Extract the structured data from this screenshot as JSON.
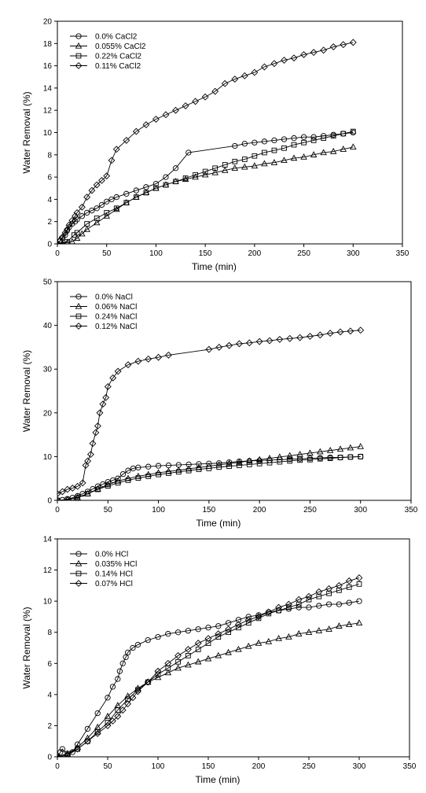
{
  "chart_data": [
    {
      "type": "line",
      "xlabel": "Time (min)",
      "ylabel": "Water Removal (%)",
      "xlim": [
        0,
        350
      ],
      "ylim": [
        0,
        20
      ],
      "xticks": [
        0,
        50,
        100,
        150,
        200,
        250,
        300,
        350
      ],
      "yticks": [
        0,
        2,
        4,
        6,
        8,
        10,
        12,
        14,
        16,
        18,
        20
      ],
      "grid": false,
      "legend": "top-left",
      "series": [
        {
          "name": "0.0% CaCl2",
          "marker": "circle",
          "x": [
            0,
            3,
            5,
            8,
            10,
            12,
            15,
            18,
            20,
            25,
            30,
            35,
            40,
            45,
            50,
            55,
            60,
            70,
            80,
            90,
            100,
            110,
            120,
            133,
            180,
            190,
            200,
            210,
            220,
            230,
            240,
            250,
            260,
            270,
            280,
            290,
            300
          ],
          "y": [
            0,
            0.3,
            0.5,
            0.8,
            1.2,
            1.5,
            1.8,
            2.0,
            2.2,
            2.5,
            2.8,
            3.0,
            3.2,
            3.5,
            3.8,
            4.0,
            4.2,
            4.5,
            4.8,
            5.1,
            5.4,
            6.0,
            6.8,
            8.2,
            8.8,
            9.0,
            9.1,
            9.2,
            9.3,
            9.4,
            9.5,
            9.6,
            9.6,
            9.7,
            9.8,
            9.9,
            10.0
          ]
        },
        {
          "name": "0.055% CaCl2",
          "marker": "triangle",
          "x": [
            0,
            5,
            10,
            15,
            20,
            25,
            30,
            40,
            50,
            60,
            70,
            80,
            90,
            100,
            110,
            120,
            130,
            140,
            150,
            160,
            170,
            180,
            190,
            200,
            210,
            220,
            230,
            240,
            250,
            260,
            270,
            280,
            290,
            300
          ],
          "y": [
            0,
            0.05,
            0.1,
            0.2,
            0.5,
            0.9,
            1.3,
            1.9,
            2.5,
            3.1,
            3.7,
            4.2,
            4.6,
            5.0,
            5.3,
            5.6,
            5.8,
            6.0,
            6.2,
            6.4,
            6.6,
            6.8,
            6.9,
            7.0,
            7.2,
            7.3,
            7.5,
            7.7,
            7.8,
            8.0,
            8.2,
            8.3,
            8.5,
            8.7
          ]
        },
        {
          "name": "0.22% CaCl2",
          "marker": "square",
          "x": [
            0,
            10,
            17,
            20,
            30,
            40,
            50,
            60,
            70,
            80,
            90,
            100,
            110,
            120,
            130,
            140,
            150,
            160,
            170,
            180,
            190,
            200,
            210,
            220,
            230,
            240,
            250,
            260,
            270,
            280,
            290,
            300
          ],
          "y": [
            0,
            0.2,
            0.8,
            1.0,
            1.8,
            2.3,
            2.8,
            3.2,
            3.7,
            4.2,
            4.6,
            5.0,
            5.3,
            5.6,
            5.9,
            6.2,
            6.5,
            6.8,
            7.1,
            7.4,
            7.6,
            7.9,
            8.2,
            8.4,
            8.6,
            8.9,
            9.1,
            9.3,
            9.5,
            9.7,
            9.9,
            10.1
          ]
        },
        {
          "name": "0.11% CaCl2",
          "marker": "diamond",
          "x": [
            0,
            3,
            5,
            8,
            10,
            12,
            15,
            18,
            20,
            25,
            30,
            35,
            40,
            45,
            50,
            55,
            60,
            70,
            80,
            90,
            100,
            110,
            120,
            130,
            140,
            150,
            160,
            170,
            180,
            190,
            200,
            210,
            220,
            230,
            240,
            250,
            260,
            270,
            280,
            290,
            300
          ],
          "y": [
            0,
            0.3,
            0.6,
            1.0,
            1.3,
            1.7,
            2.1,
            2.5,
            2.8,
            3.3,
            4.2,
            4.8,
            5.3,
            5.7,
            6.1,
            7.5,
            8.5,
            9.3,
            10.1,
            10.7,
            11.2,
            11.6,
            12.0,
            12.4,
            12.8,
            13.2,
            13.7,
            14.4,
            14.8,
            15.1,
            15.4,
            15.9,
            16.2,
            16.5,
            16.7,
            17.0,
            17.2,
            17.4,
            17.7,
            17.9,
            18.1
          ]
        }
      ]
    },
    {
      "type": "line",
      "xlabel": "Time (min)",
      "ylabel": "Water Removal (%)",
      "xlim": [
        0,
        350
      ],
      "ylim": [
        0,
        50
      ],
      "xticks": [
        0,
        50,
        100,
        150,
        200,
        250,
        300,
        350
      ],
      "yticks": [
        0,
        10,
        20,
        30,
        40,
        50
      ],
      "grid": false,
      "legend": "top-left",
      "series": [
        {
          "name": "0.0% NaCl",
          "marker": "circle",
          "x": [
            0,
            5,
            10,
            15,
            20,
            25,
            30,
            35,
            40,
            45,
            50,
            55,
            60,
            65,
            70,
            75,
            80,
            90,
            100,
            110,
            120,
            130,
            140,
            150,
            160,
            170,
            180,
            190,
            200,
            210,
            220,
            230,
            240,
            250,
            260,
            270,
            280,
            290,
            300
          ],
          "y": [
            0,
            0.1,
            0.3,
            0.6,
            1.0,
            1.5,
            2.0,
            2.6,
            3.2,
            3.7,
            4.2,
            4.6,
            5.0,
            6.0,
            6.8,
            7.3,
            7.5,
            7.7,
            7.9,
            8.0,
            8.1,
            8.2,
            8.3,
            8.4,
            8.5,
            8.7,
            8.9,
            9.0,
            9.1,
            9.2,
            9.3,
            9.4,
            9.5,
            9.6,
            9.7,
            9.8,
            9.8,
            9.9,
            10.0
          ]
        },
        {
          "name": "0.06% NaCl",
          "marker": "triangle",
          "x": [
            0,
            10,
            20,
            30,
            40,
            50,
            60,
            70,
            80,
            90,
            100,
            110,
            120,
            130,
            140,
            150,
            160,
            170,
            180,
            190,
            200,
            210,
            220,
            230,
            240,
            250,
            260,
            270,
            280,
            290,
            300
          ],
          "y": [
            0,
            0.2,
            0.6,
            1.5,
            2.6,
            3.6,
            4.4,
            5.0,
            5.5,
            5.9,
            6.3,
            6.6,
            6.9,
            7.2,
            7.5,
            7.8,
            8.1,
            8.4,
            8.7,
            9.0,
            9.3,
            9.6,
            9.9,
            10.2,
            10.5,
            10.8,
            11.1,
            11.4,
            11.7,
            12.0,
            12.3
          ]
        },
        {
          "name": "0.24% NaCl",
          "marker": "square",
          "x": [
            0,
            10,
            20,
            30,
            40,
            50,
            60,
            70,
            80,
            90,
            100,
            110,
            120,
            130,
            140,
            150,
            160,
            170,
            180,
            190,
            200,
            210,
            220,
            230,
            240,
            250,
            260,
            270,
            280,
            290,
            300
          ],
          "y": [
            0,
            0.2,
            0.7,
            1.5,
            2.5,
            3.3,
            4.0,
            4.6,
            5.1,
            5.5,
            5.9,
            6.2,
            6.5,
            6.8,
            7.1,
            7.3,
            7.6,
            7.8,
            8.0,
            8.2,
            8.4,
            8.6,
            8.8,
            9.0,
            9.2,
            9.3,
            9.5,
            9.6,
            9.8,
            9.9,
            10.0
          ]
        },
        {
          "name": "0.12% NaCl",
          "marker": "diamond",
          "x": [
            0,
            5,
            10,
            15,
            20,
            25,
            28,
            30,
            33,
            35,
            38,
            40,
            42,
            45,
            48,
            50,
            55,
            60,
            70,
            80,
            90,
            100,
            110,
            150,
            160,
            170,
            180,
            190,
            200,
            210,
            220,
            230,
            240,
            250,
            260,
            270,
            280,
            290,
            300
          ],
          "y": [
            1.5,
            2.0,
            2.5,
            2.8,
            3.2,
            4.0,
            8.0,
            9.0,
            10.5,
            13.0,
            15.5,
            17.0,
            20.0,
            22.0,
            23.5,
            26.0,
            28.0,
            29.5,
            31.0,
            31.8,
            32.3,
            32.7,
            33.2,
            34.5,
            35.0,
            35.4,
            35.8,
            36.0,
            36.3,
            36.5,
            36.8,
            37.0,
            37.2,
            37.5,
            37.8,
            38.2,
            38.5,
            38.7,
            38.9
          ]
        }
      ]
    },
    {
      "type": "line",
      "xlabel": "Time (min)",
      "ylabel": "Water Removal (%)",
      "xlim": [
        0,
        350
      ],
      "ylim": [
        0,
        14
      ],
      "xticks": [
        0,
        50,
        100,
        150,
        200,
        250,
        300,
        350
      ],
      "yticks": [
        0,
        2,
        4,
        6,
        8,
        10,
        12,
        14
      ],
      "grid": false,
      "legend": "top-left",
      "series": [
        {
          "name": "0.0% HCl",
          "marker": "circle",
          "x": [
            0,
            3,
            5,
            10,
            15,
            20,
            30,
            40,
            50,
            55,
            60,
            62,
            65,
            68,
            70,
            75,
            80,
            90,
            100,
            110,
            120,
            130,
            140,
            150,
            160,
            170,
            180,
            190,
            200,
            210,
            220,
            230,
            240,
            250,
            260,
            270,
            280,
            290,
            300
          ],
          "y": [
            0,
            0.3,
            0.5,
            0.1,
            0.3,
            0.8,
            1.8,
            2.8,
            3.8,
            4.5,
            5.0,
            5.5,
            6.0,
            6.4,
            6.7,
            7.0,
            7.2,
            7.5,
            7.7,
            7.9,
            8.0,
            8.1,
            8.2,
            8.3,
            8.4,
            8.6,
            8.8,
            9.0,
            9.1,
            9.3,
            9.4,
            9.5,
            9.6,
            9.6,
            9.7,
            9.8,
            9.8,
            9.9,
            10.0
          ]
        },
        {
          "name": "0.035% HCl",
          "marker": "triangle",
          "x": [
            0,
            10,
            20,
            30,
            40,
            50,
            60,
            70,
            80,
            90,
            100,
            110,
            120,
            130,
            140,
            150,
            160,
            170,
            180,
            190,
            200,
            210,
            220,
            230,
            240,
            250,
            260,
            270,
            280,
            290,
            300
          ],
          "y": [
            0,
            0.2,
            0.6,
            1.2,
            1.9,
            2.6,
            3.3,
            3.9,
            4.4,
            4.8,
            5.1,
            5.4,
            5.7,
            5.9,
            6.1,
            6.3,
            6.5,
            6.7,
            6.9,
            7.1,
            7.3,
            7.4,
            7.6,
            7.7,
            7.9,
            8.0,
            8.1,
            8.2,
            8.4,
            8.5,
            8.6
          ]
        },
        {
          "name": "0.14% HCl",
          "marker": "square",
          "x": [
            0,
            10,
            20,
            30,
            40,
            50,
            60,
            70,
            80,
            90,
            100,
            110,
            120,
            130,
            140,
            150,
            160,
            170,
            180,
            190,
            200,
            210,
            220,
            230,
            240,
            250,
            260,
            270,
            280,
            290,
            300
          ],
          "y": [
            0,
            0.2,
            0.5,
            1.0,
            1.6,
            2.2,
            3.0,
            3.7,
            4.3,
            4.8,
            5.3,
            5.7,
            6.1,
            6.5,
            6.9,
            7.3,
            7.7,
            8.0,
            8.3,
            8.6,
            8.9,
            9.2,
            9.4,
            9.6,
            9.8,
            10.1,
            10.3,
            10.5,
            10.7,
            10.9,
            11.1
          ]
        },
        {
          "name": "0.07% HCl",
          "marker": "diamond",
          "x": [
            0,
            10,
            20,
            30,
            40,
            50,
            55,
            60,
            65,
            70,
            75,
            80,
            90,
            100,
            110,
            120,
            130,
            140,
            150,
            160,
            170,
            180,
            190,
            200,
            210,
            220,
            230,
            240,
            250,
            260,
            270,
            280,
            290,
            300
          ],
          "y": [
            0,
            0.1,
            0.5,
            1.0,
            1.5,
            2.0,
            2.3,
            2.6,
            3.0,
            3.4,
            3.8,
            4.2,
            4.8,
            5.5,
            6.0,
            6.5,
            6.9,
            7.3,
            7.6,
            7.9,
            8.2,
            8.5,
            8.8,
            9.0,
            9.3,
            9.6,
            9.8,
            10.1,
            10.3,
            10.6,
            10.8,
            11.0,
            11.3,
            11.5
          ]
        }
      ]
    }
  ]
}
